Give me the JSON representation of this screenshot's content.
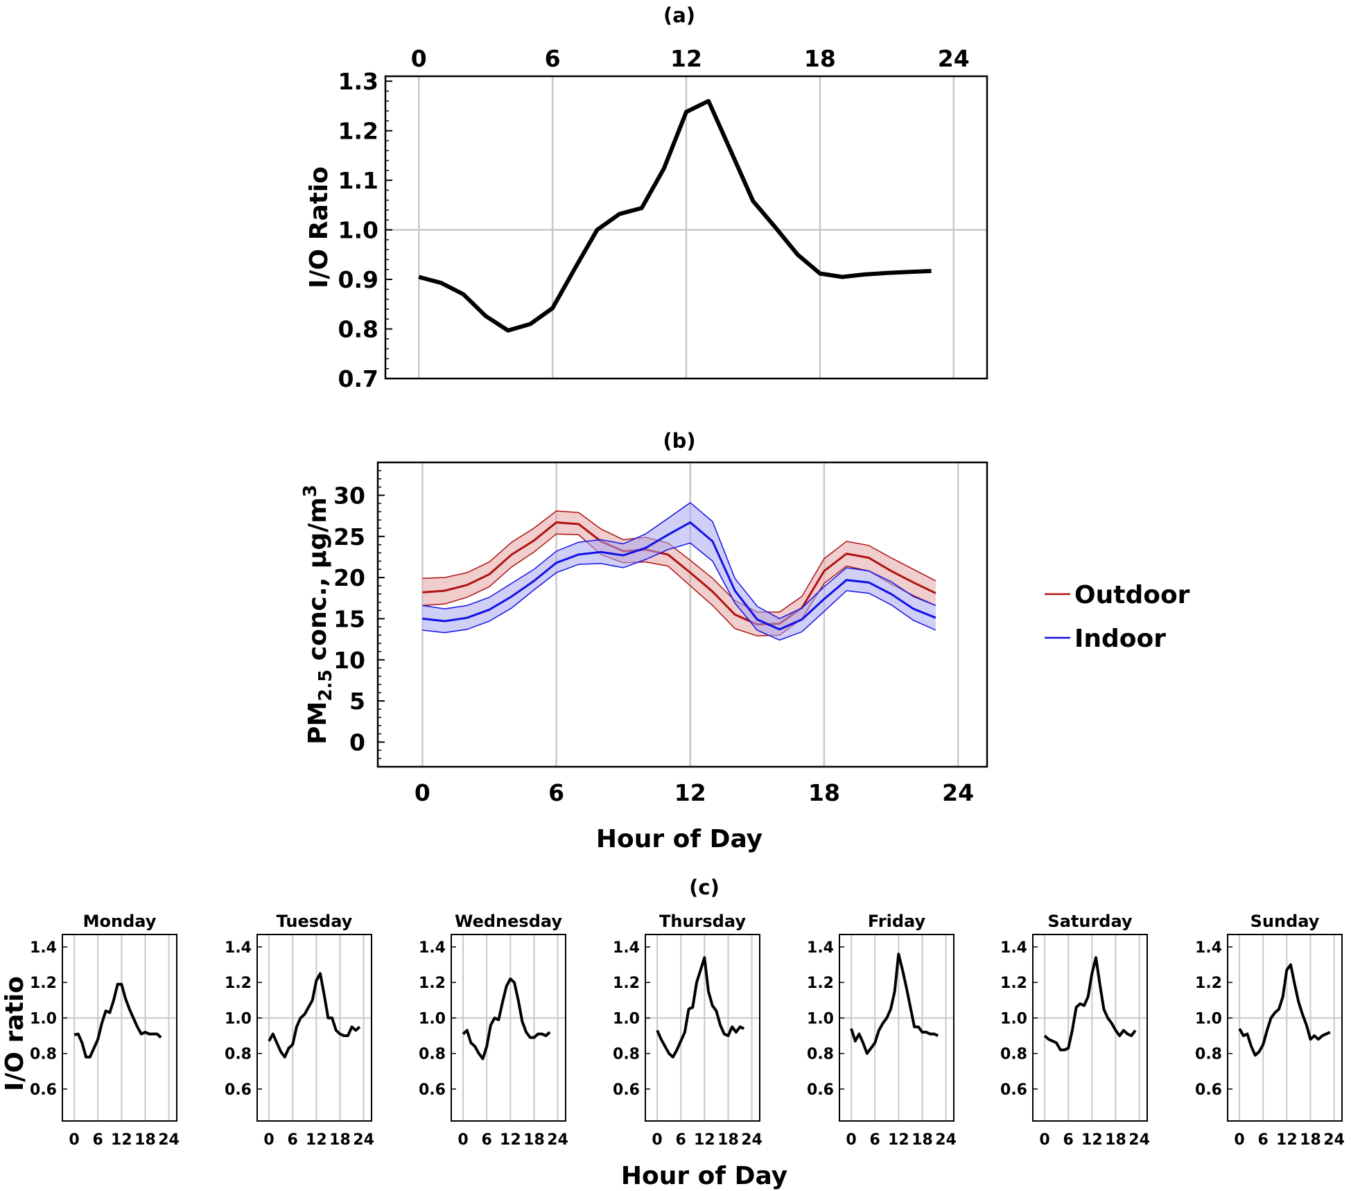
{
  "chart_data": [
    {
      "id": "a",
      "type": "line",
      "title": "(a)",
      "ylabel": "I/O Ratio",
      "xlabel": "",
      "xlim": [
        -1.5,
        25.5
      ],
      "ylim": [
        0.7,
        1.31
      ],
      "xticks": [
        0,
        6,
        12,
        18,
        24
      ],
      "xtick_labels": [
        "0",
        "6",
        "12",
        "18",
        "24"
      ],
      "yticks": [
        0.7,
        0.8,
        0.9,
        1.0,
        1.1,
        1.2,
        1.3
      ],
      "ytick_labels": [
        "0.7",
        "0.8",
        "0.9",
        "1.0",
        "1.1",
        "1.2",
        "1.3"
      ],
      "x_axis_position": "top",
      "grid": true,
      "reference_line": 1.0,
      "series": [
        {
          "color": "#000000",
          "x": [
            0,
            1,
            2,
            3,
            4,
            5,
            6,
            7,
            8,
            9,
            10,
            11,
            12,
            13,
            14,
            15,
            16,
            17,
            18,
            19,
            20,
            21,
            22,
            23
          ],
          "y": [
            0.905,
            0.893,
            0.87,
            0.826,
            0.797,
            0.81,
            0.842,
            0.922,
            1.0,
            1.032,
            1.044,
            1.124,
            1.238,
            1.26,
            1.159,
            1.058,
            1.005,
            0.95,
            0.912,
            0.905,
            0.91,
            0.913,
            0.915,
            0.917
          ]
        }
      ]
    },
    {
      "id": "b",
      "type": "area",
      "title": "(b)",
      "ylabel_main": "PM",
      "ylabel_sub": "2.5",
      "ylabel_rest": " conc., μg/m",
      "ylabel_sup": "3",
      "xlabel": "Hour of Day",
      "xlim": [
        -2,
        25.3
      ],
      "ylim": [
        -3,
        34
      ],
      "xticks": [
        0,
        6,
        12,
        18,
        24
      ],
      "xtick_labels": [
        "0",
        "6",
        "12",
        "18",
        "24"
      ],
      "yticks": [
        0,
        5,
        10,
        15,
        20,
        25,
        30
      ],
      "ytick_labels": [
        "0",
        "5",
        "10",
        "15",
        "20",
        "25",
        "30"
      ],
      "grid": true,
      "legend_position": "right",
      "series": [
        {
          "name": "Outdoor",
          "color": "#b01010",
          "fill": "#e6a5a5",
          "x": [
            0,
            1,
            2,
            3,
            4,
            5,
            6,
            7,
            8,
            9,
            10,
            11,
            12,
            13,
            14,
            15,
            16,
            17,
            18,
            19,
            20,
            21,
            22,
            23
          ],
          "y": [
            18.2,
            18.4,
            19.1,
            20.4,
            22.8,
            24.5,
            26.7,
            26.5,
            24.4,
            23.2,
            23.4,
            22.8,
            20.6,
            18.3,
            15.5,
            14.3,
            14.4,
            16.3,
            20.8,
            22.9,
            22.4,
            20.8,
            19.4,
            18.1
          ],
          "lower": [
            16.6,
            16.8,
            17.6,
            18.9,
            21.3,
            23.1,
            25.3,
            25.2,
            22.8,
            21.8,
            21.9,
            21.4,
            19.0,
            16.6,
            13.8,
            12.9,
            13.0,
            15.0,
            19.3,
            21.4,
            20.8,
            19.2,
            17.8,
            16.6
          ],
          "upper": [
            19.9,
            20.0,
            20.6,
            21.9,
            24.3,
            26.0,
            28.1,
            27.9,
            25.9,
            24.6,
            24.9,
            24.2,
            22.1,
            19.9,
            17.2,
            15.8,
            15.8,
            17.7,
            22.3,
            24.4,
            23.9,
            22.4,
            21.0,
            19.6
          ]
        },
        {
          "name": "Indoor",
          "color": "#1010e6",
          "fill": "#a7a7f3",
          "x": [
            0,
            1,
            2,
            3,
            4,
            5,
            6,
            7,
            8,
            9,
            10,
            11,
            12,
            13,
            14,
            15,
            16,
            17,
            18,
            19,
            20,
            21,
            22,
            23
          ],
          "y": [
            15.0,
            14.7,
            15.1,
            16.1,
            17.7,
            19.6,
            21.8,
            22.8,
            23.1,
            22.7,
            23.6,
            25.2,
            26.7,
            24.4,
            18.4,
            14.9,
            13.7,
            14.9,
            17.4,
            19.7,
            19.4,
            18.0,
            16.2,
            15.1
          ],
          "lower": [
            13.6,
            13.3,
            13.7,
            14.7,
            16.3,
            18.5,
            20.6,
            21.6,
            21.7,
            21.2,
            22.2,
            23.4,
            24.2,
            22.0,
            16.9,
            13.6,
            12.4,
            13.4,
            15.9,
            18.4,
            18.1,
            16.7,
            14.8,
            13.6
          ],
          "upper": [
            16.6,
            16.2,
            16.6,
            17.6,
            19.3,
            21.0,
            23.2,
            24.3,
            24.6,
            24.1,
            25.3,
            27.2,
            29.1,
            26.8,
            19.9,
            16.5,
            15.0,
            16.3,
            18.9,
            21.2,
            20.8,
            19.5,
            17.7,
            16.6
          ]
        }
      ]
    },
    {
      "id": "c",
      "type": "line",
      "title": "(c)",
      "ylabel": "I/O ratio",
      "xlabel": "Hour of Day",
      "xlim": [
        -3,
        26
      ],
      "ylim": [
        0.42,
        1.47
      ],
      "xticks": [
        0,
        6,
        12,
        18,
        24
      ],
      "xtick_labels": [
        "0",
        "6",
        "12",
        "18",
        "24"
      ],
      "yticks": [
        0.6,
        0.8,
        1.0,
        1.2,
        1.4
      ],
      "ytick_labels": [
        "0.6",
        "0.8",
        "1.0",
        "1.2",
        "1.4"
      ],
      "grid": true,
      "reference_line": 1.0,
      "panels": [
        {
          "name": "Monday",
          "y": [
            0.905,
            0.91,
            0.86,
            0.78,
            0.78,
            0.83,
            0.88,
            0.97,
            1.04,
            1.03,
            1.1,
            1.19,
            1.19,
            1.11,
            1.05,
            1.0,
            0.95,
            0.91,
            0.92,
            0.91,
            0.91,
            0.91,
            0.89
          ]
        },
        {
          "name": "Tuesday",
          "y": [
            0.87,
            0.91,
            0.86,
            0.81,
            0.78,
            0.83,
            0.85,
            0.95,
            1.0,
            1.02,
            1.06,
            1.1,
            1.21,
            1.25,
            1.13,
            1.0,
            1.0,
            0.93,
            0.91,
            0.9,
            0.9,
            0.95,
            0.93,
            0.95
          ]
        },
        {
          "name": "Wednesday",
          "y": [
            0.91,
            0.93,
            0.86,
            0.84,
            0.8,
            0.77,
            0.84,
            0.96,
            1.0,
            0.99,
            1.09,
            1.18,
            1.22,
            1.2,
            1.1,
            0.98,
            0.92,
            0.89,
            0.89,
            0.91,
            0.91,
            0.9,
            0.92
          ]
        },
        {
          "name": "Thursday",
          "y": [
            0.93,
            0.88,
            0.84,
            0.8,
            0.78,
            0.82,
            0.87,
            0.92,
            1.05,
            1.06,
            1.2,
            1.27,
            1.34,
            1.15,
            1.07,
            1.04,
            0.96,
            0.91,
            0.9,
            0.95,
            0.92,
            0.95,
            0.94
          ]
        },
        {
          "name": "Friday",
          "y": [
            0.94,
            0.87,
            0.91,
            0.86,
            0.8,
            0.83,
            0.86,
            0.93,
            0.97,
            1.0,
            1.05,
            1.15,
            1.36,
            1.27,
            1.17,
            1.06,
            0.95,
            0.95,
            0.92,
            0.92,
            0.91,
            0.91,
            0.9
          ]
        },
        {
          "name": "Saturday",
          "y": [
            0.9,
            0.88,
            0.87,
            0.86,
            0.82,
            0.82,
            0.83,
            0.93,
            1.06,
            1.08,
            1.07,
            1.12,
            1.25,
            1.34,
            1.19,
            1.05,
            1.0,
            0.97,
            0.93,
            0.9,
            0.93,
            0.91,
            0.9,
            0.93
          ]
        },
        {
          "name": "Sunday",
          "y": [
            0.94,
            0.9,
            0.91,
            0.84,
            0.79,
            0.81,
            0.85,
            0.93,
            1.0,
            1.03,
            1.05,
            1.12,
            1.27,
            1.3,
            1.19,
            1.09,
            1.02,
            0.96,
            0.88,
            0.9,
            0.88,
            0.9,
            0.91,
            0.92
          ]
        }
      ]
    }
  ]
}
